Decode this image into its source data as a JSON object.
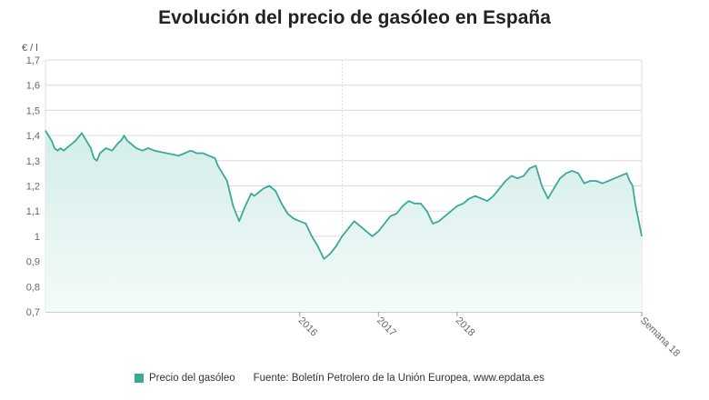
{
  "title": "Evolución del precio de gasóleo en España",
  "legend": {
    "label": "Precio del gasóleo"
  },
  "source": "Fuente: Boletín Petrolero de la Unión Europea, www.epdata.es",
  "colors": {
    "line": "#3aa99a",
    "fill_top": "#d3ede9",
    "fill_bottom": "#f4fbfa",
    "grid": "#dcdcdc",
    "axis_text": "#666666"
  },
  "chart_data": {
    "type": "area",
    "ylabel": "€ / l",
    "ylim": [
      0.7,
      1.7
    ],
    "yticks": [
      "0,7",
      "0,8",
      "0,9",
      "1",
      "1,1",
      "1,2",
      "1,3",
      "1,4",
      "1,5",
      "1,6",
      "1,7"
    ],
    "ytick_values": [
      0.7,
      0.8,
      0.9,
      1.0,
      1.1,
      1.2,
      1.3,
      1.4,
      1.5,
      1.6,
      1.7
    ],
    "xlim": [
      0,
      197
    ],
    "xticks": [
      {
        "label": "2016",
        "x": 84
      },
      {
        "label": "2017",
        "x": 110
      },
      {
        "label": "2018",
        "x": 136
      },
      {
        "label": "Semana 18",
        "x": 197
      }
    ],
    "vertical_gridlines": [
      98
    ],
    "grid": true,
    "legend_position": "bottom",
    "series": [
      {
        "name": "Precio del gasóleo",
        "x": [
          0,
          2,
          3,
          4,
          5,
          6,
          7,
          8,
          9,
          10,
          12,
          14,
          15,
          16,
          17,
          18,
          20,
          22,
          24,
          25,
          26,
          27,
          28,
          30,
          32,
          34,
          36,
          40,
          44,
          46,
          48,
          50,
          52,
          54,
          56,
          57,
          58,
          60,
          62,
          64,
          66,
          68,
          69,
          70,
          72,
          74,
          76,
          78,
          80,
          82,
          84,
          86,
          88,
          90,
          92,
          93,
          94,
          96,
          98,
          100,
          102,
          104,
          106,
          108,
          110,
          112,
          114,
          116,
          118,
          120,
          122,
          124,
          126,
          128,
          130,
          132,
          134,
          136,
          138,
          140,
          142,
          144,
          146,
          148,
          150,
          152,
          154,
          156,
          158,
          160,
          162,
          164,
          166,
          168,
          170,
          172,
          174,
          176,
          178,
          180,
          182,
          184,
          186,
          188,
          190,
          192,
          193,
          194,
          195,
          196,
          197
        ],
        "values": [
          1.42,
          1.38,
          1.35,
          1.34,
          1.35,
          1.34,
          1.35,
          1.36,
          1.37,
          1.38,
          1.41,
          1.37,
          1.35,
          1.31,
          1.3,
          1.33,
          1.35,
          1.34,
          1.37,
          1.38,
          1.4,
          1.38,
          1.37,
          1.35,
          1.34,
          1.35,
          1.34,
          1.33,
          1.32,
          1.33,
          1.34,
          1.33,
          1.33,
          1.32,
          1.31,
          1.28,
          1.26,
          1.22,
          1.12,
          1.06,
          1.12,
          1.17,
          1.16,
          1.17,
          1.19,
          1.2,
          1.18,
          1.13,
          1.09,
          1.07,
          1.06,
          1.05,
          1.0,
          0.96,
          0.91,
          0.92,
          0.93,
          0.96,
          1.0,
          1.03,
          1.06,
          1.04,
          1.02,
          1.0,
          1.02,
          1.05,
          1.08,
          1.09,
          1.12,
          1.14,
          1.13,
          1.13,
          1.1,
          1.05,
          1.06,
          1.08,
          1.1,
          1.12,
          1.13,
          1.15,
          1.16,
          1.15,
          1.14,
          1.16,
          1.19,
          1.22,
          1.24,
          1.23,
          1.24,
          1.27,
          1.28,
          1.2,
          1.15,
          1.19,
          1.23,
          1.25,
          1.26,
          1.25,
          1.21,
          1.22,
          1.22,
          1.21,
          1.22,
          1.23,
          1.24,
          1.25,
          1.22,
          1.2,
          1.12,
          1.06,
          1.0
        ]
      }
    ]
  }
}
